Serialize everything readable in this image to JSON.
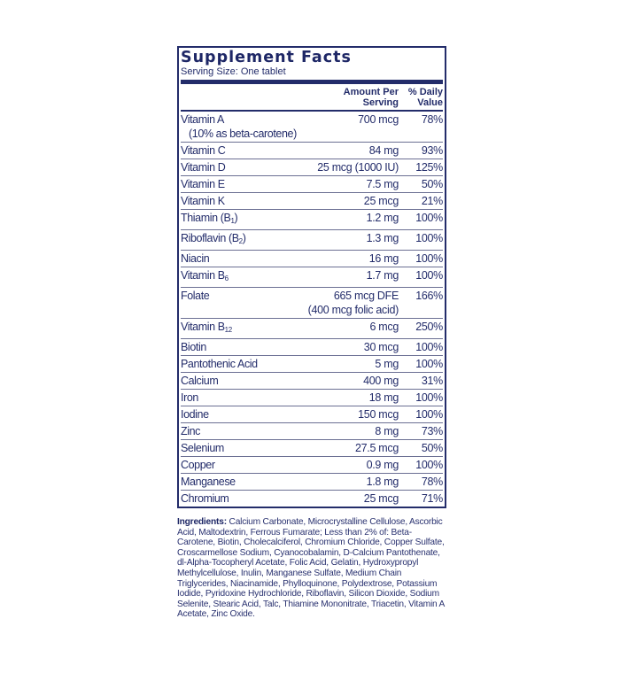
{
  "panel": {
    "title": "Supplement Facts",
    "serving_size": "Serving Size: One tablet",
    "header": {
      "amount_line1": "Amount Per",
      "amount_line2": "Serving",
      "dv_line1": "% Daily",
      "dv_line2": "Value"
    },
    "rows": [
      {
        "name": "Vitamin A",
        "note": "(10% as beta-carotene)",
        "amount": "700 mcg",
        "dv": "78%"
      },
      {
        "name": "Vitamin C",
        "amount": "84 mg",
        "dv": "93%"
      },
      {
        "name": "Vitamin D",
        "amount": "25 mcg (1000 IU)",
        "dv": "125%"
      },
      {
        "name": "Vitamin E",
        "amount": "7.5 mg",
        "dv": "50%"
      },
      {
        "name": "Vitamin K",
        "amount": "25 mcg",
        "dv": "21%"
      },
      {
        "name": "Thiamin (B",
        "sub": "1",
        "suffix": ")",
        "amount": "1.2 mg",
        "dv": "100%"
      },
      {
        "name": "Riboflavin (B",
        "sub": "2",
        "suffix": ")",
        "amount": "1.3 mg",
        "dv": "100%"
      },
      {
        "name": "Niacin",
        "amount": "16 mg",
        "dv": "100%"
      },
      {
        "name": "Vitamin B",
        "sub": "6",
        "amount": "1.7 mg",
        "dv": "100%"
      },
      {
        "name": "Folate",
        "amount": "665 mcg DFE",
        "amount2": "(400 mcg folic acid)",
        "dv": "166%"
      },
      {
        "name": "Vitamin B",
        "sub": "12",
        "amount": "6 mcg",
        "dv": "250%"
      },
      {
        "name": "Biotin",
        "amount": "30 mcg",
        "dv": "100%"
      },
      {
        "name": "Pantothenic Acid",
        "amount": "5 mg",
        "dv": "100%"
      },
      {
        "name": "Calcium",
        "amount": "400 mg",
        "dv": "31%"
      },
      {
        "name": "Iron",
        "amount": "18 mg",
        "dv": "100%"
      },
      {
        "name": "Iodine",
        "amount": "150 mcg",
        "dv": "100%"
      },
      {
        "name": "Zinc",
        "amount": "8 mg",
        "dv": "73%"
      },
      {
        "name": "Selenium",
        "amount": "27.5 mcg",
        "dv": "50%"
      },
      {
        "name": "Copper",
        "amount": "0.9 mg",
        "dv": "100%"
      },
      {
        "name": "Manganese",
        "amount": "1.8 mg",
        "dv": "78%"
      },
      {
        "name": "Chromium",
        "amount": "25 mcg",
        "dv": "71%"
      }
    ]
  },
  "ingredients": {
    "label": "Ingredients:",
    "text": " Calcium Carbonate, Microcrystalline Cellulose, Ascorbic Acid, Maltodextrin, Ferrous Fumarate; Less than 2% of: Beta-Carotene, Biotin, Cholecalciferol, Chromium Chloride, Copper Sulfate, Croscarmellose Sodium, Cyanocobalamin, D-Calcium Pantothenate, dl-Alpha-Tocopheryl Acetate, Folic Acid, Gelatin, Hydroxypropyl Methylcellulose, Inulin, Manganese Sulfate, Medium Chain Triglycerides, Niacinamide, Phylloquinone, Polydextrose, Potassium Iodide, Pyridoxine Hydrochloride, Riboflavin, Silicon Dioxide, Sodium Selenite, Stearic Acid, Talc, Thiamine Mononitrate, Triacetin, Vitamin A Acetate, Zinc Oxide."
  },
  "colors": {
    "navy": "#232c6a"
  }
}
